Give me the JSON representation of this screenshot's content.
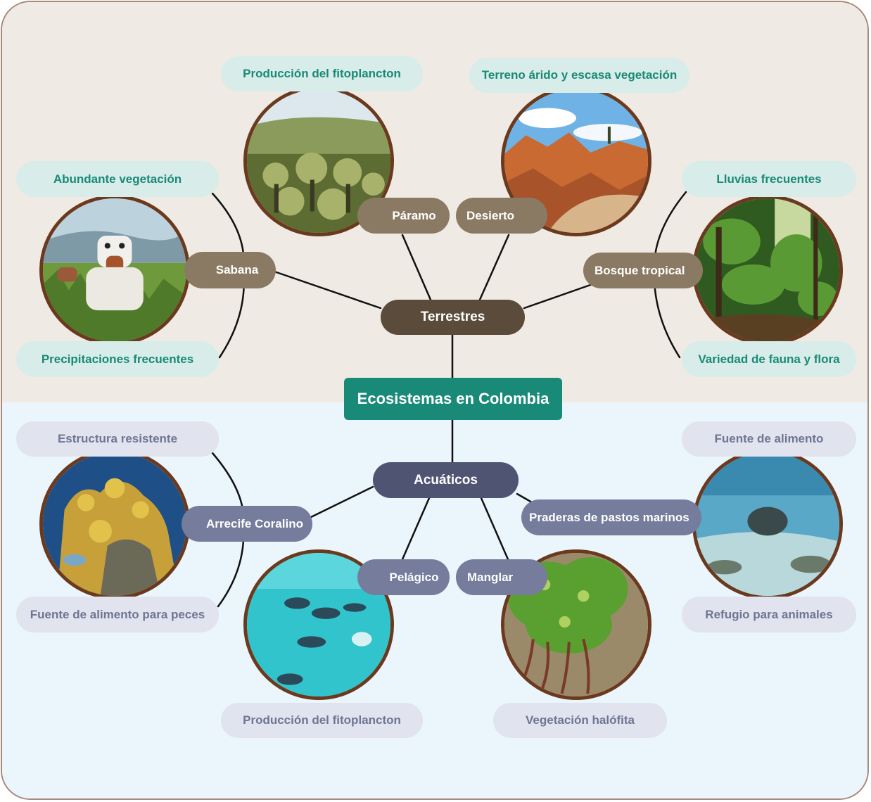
{
  "root": {
    "label": "Ecosistemas en Colombia"
  },
  "colors": {
    "root": "#1a8a78",
    "terrestrial": "#5a4b3a",
    "aquatic": "#4e5472",
    "terrestrial_leaf_text": "#198a76",
    "aquatic_leaf_text": "#6f7592",
    "photo_border": "#6b3a1e"
  },
  "terrestres": {
    "label": "Terrestres",
    "sabana": {
      "label": "Sabana",
      "image": "cow-in-grassland",
      "leaves": [
        "Abundante vegetación",
        "Precipitaciones frecuentes"
      ]
    },
    "paramo": {
      "label": "Páramo",
      "image": "frailejones-moorland",
      "leaves": [
        "Producción del fitoplancton"
      ]
    },
    "desierto": {
      "label": "Desierto",
      "image": "red-rock-desert",
      "leaves": [
        "Terreno árido y escasa vegetación"
      ]
    },
    "bosque": {
      "label": "Bosque tropical",
      "image": "rainforest",
      "leaves": [
        "Lluvias frecuentes",
        "Variedad de fauna y flora"
      ]
    }
  },
  "acuaticos": {
    "label": "Acuáticos",
    "arrecife": {
      "label": "Arrecife Coralino",
      "image": "coral-reef",
      "leaves": [
        "Estructura resistente",
        "Fuente de alimento para peces"
      ]
    },
    "pelagico": {
      "label": "Pelágico",
      "image": "fish-in-open-sea",
      "leaves": [
        "Producción del fitoplancton"
      ]
    },
    "manglar": {
      "label": "Manglar",
      "image": "mangrove-roots",
      "leaves": [
        "Vegetación halófita"
      ]
    },
    "praderas": {
      "label": "Praderas de pastos marinos",
      "image": "seagrass-seabed",
      "leaves": [
        "Fuente de alimento",
        "Refugio para animales"
      ]
    }
  }
}
